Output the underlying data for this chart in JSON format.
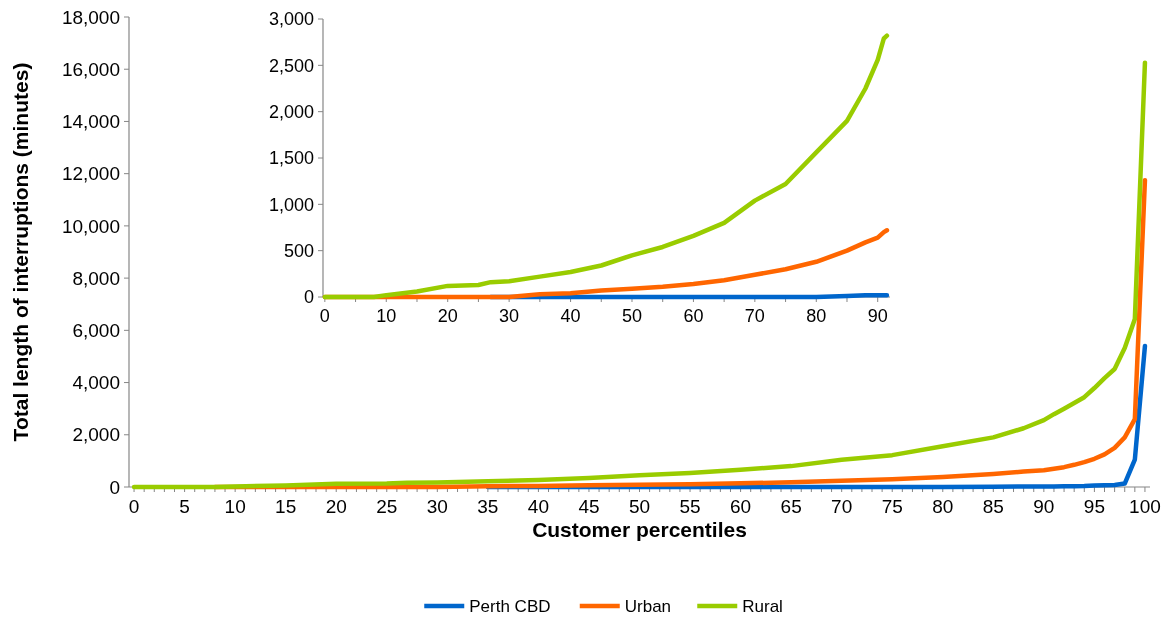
{
  "chart_data": [
    {
      "type": "line",
      "xlabel": "Customer percentiles",
      "ylabel": "Total length of interruptions (minutes)",
      "legend": "bottom",
      "line_style": "solid",
      "xlim": [
        -0.5,
        100.5
      ],
      "xticks": [
        {
          "value": 0,
          "label": "0"
        },
        {
          "value": 1,
          "label": null
        },
        {
          "value": 2,
          "label": null
        },
        {
          "value": 3,
          "label": null
        },
        {
          "value": 4,
          "label": null
        },
        5,
        {
          "value": 6,
          "label": null
        },
        {
          "value": 7,
          "label": null
        },
        {
          "value": 8,
          "label": null
        },
        {
          "value": 9,
          "label": null
        },
        10,
        {
          "value": 11,
          "label": null
        },
        {
          "value": 12,
          "label": null
        },
        {
          "value": 13,
          "label": null
        },
        {
          "value": 14,
          "label": null
        },
        15,
        {
          "value": 16,
          "label": null
        },
        {
          "value": 17,
          "label": null
        },
        {
          "value": 18,
          "label": null
        },
        {
          "value": 19,
          "label": null
        },
        20,
        {
          "value": 21,
          "label": null
        },
        {
          "value": 22,
          "label": null
        },
        {
          "value": 23,
          "label": null
        },
        {
          "value": 24,
          "label": null
        },
        25,
        {
          "value": 26,
          "label": null
        },
        {
          "value": 27,
          "label": null
        },
        {
          "value": 28,
          "label": null
        },
        {
          "value": 29,
          "label": null
        },
        30,
        {
          "value": 31,
          "label": null
        },
        {
          "value": 32,
          "label": null
        },
        {
          "value": 33,
          "label": null
        },
        {
          "value": 34,
          "label": null
        },
        35,
        {
          "value": 36,
          "label": null
        },
        {
          "value": 37,
          "label": null
        },
        {
          "value": 38,
          "label": null
        },
        {
          "value": 39,
          "label": null
        },
        40,
        {
          "value": 41,
          "label": null
        },
        {
          "value": 42,
          "label": null
        },
        {
          "value": 43,
          "label": null
        },
        {
          "value": 44,
          "label": null
        },
        45,
        {
          "value": 46,
          "label": null
        },
        {
          "value": 47,
          "label": null
        },
        {
          "value": 48,
          "label": null
        },
        {
          "value": 49,
          "label": null
        },
        50,
        {
          "value": 51,
          "label": null
        },
        {
          "value": 52,
          "label": null
        },
        {
          "value": 53,
          "label": null
        },
        {
          "value": 54,
          "label": null
        },
        55,
        {
          "value": 56,
          "label": null
        },
        {
          "value": 57,
          "label": null
        },
        {
          "value": 58,
          "label": null
        },
        {
          "value": 59,
          "label": null
        },
        60,
        {
          "value": 61,
          "label": null
        },
        {
          "value": 62,
          "label": null
        },
        {
          "value": 63,
          "label": null
        },
        {
          "value": 64,
          "label": null
        },
        65,
        {
          "value": 66,
          "label": null
        },
        {
          "value": 67,
          "label": null
        },
        {
          "value": 68,
          "label": null
        },
        {
          "value": 69,
          "label": null
        },
        70,
        {
          "value": 71,
          "label": null
        },
        {
          "value": 72,
          "label": null
        },
        {
          "value": 73,
          "label": null
        },
        {
          "value": 74,
          "label": null
        },
        75,
        {
          "value": 76,
          "label": null
        },
        {
          "value": 77,
          "label": null
        },
        {
          "value": 78,
          "label": null
        },
        {
          "value": 79,
          "label": null
        },
        80,
        {
          "value": 81,
          "label": null
        },
        {
          "value": 82,
          "label": null
        },
        {
          "value": 83,
          "label": null
        },
        {
          "value": 84,
          "label": null
        },
        85,
        {
          "value": 86,
          "label": null
        },
        {
          "value": 87,
          "label": null
        },
        {
          "value": 88,
          "label": null
        },
        {
          "value": 89,
          "label": null
        },
        90,
        {
          "value": 91,
          "label": null
        },
        {
          "value": 92,
          "label": null
        },
        {
          "value": 93,
          "label": null
        },
        {
          "value": 94,
          "label": null
        },
        95,
        {
          "value": 96,
          "label": null
        },
        {
          "value": 97,
          "label": null
        },
        {
          "value": 98,
          "label": null
        },
        {
          "value": 99,
          "label": null
        },
        100
      ],
      "ylim": [
        0,
        18000
      ],
      "yticks": [
        {
          "value": 0,
          "label": "0"
        },
        {
          "value": 2000,
          "label": "2,000"
        },
        {
          "value": 4000,
          "label": "4,000"
        },
        {
          "value": 6000,
          "label": "6,000"
        },
        {
          "value": 8000,
          "label": "8,000"
        },
        {
          "value": 10000,
          "label": "10,000"
        },
        {
          "value": 12000,
          "label": "12,000"
        },
        {
          "value": 14000,
          "label": "14,000"
        },
        {
          "value": 16000,
          "label": "16,000"
        },
        {
          "value": 18000,
          "label": "18,000"
        }
      ],
      "x": [
        0,
        5,
        8,
        10,
        15,
        20,
        25,
        27,
        30,
        35,
        40,
        45,
        50,
        55,
        60,
        65,
        70,
        75,
        80,
        85,
        88,
        90,
        91,
        92,
        93,
        94,
        95,
        96,
        97,
        98,
        99,
        100
      ],
      "series": [
        {
          "name": "Perth CBD",
          "color": "#0066cc",
          "values": [
            null,
            null,
            null,
            null,
            null,
            null,
            null,
            null,
            null,
            0,
            0,
            0,
            0,
            0,
            0,
            0,
            0,
            0,
            0,
            10,
            20,
            20,
            20,
            30,
            30,
            40,
            60,
            70,
            80,
            130,
            1050,
            5400
          ]
        },
        {
          "name": "Urban",
          "color": "#ff6600",
          "values": [
            null,
            null,
            0,
            0,
            0,
            0,
            0,
            0,
            0,
            30,
            40,
            70,
            90,
            110,
            140,
            180,
            240,
            300,
            380,
            500,
            590,
            640,
            700,
            760,
            850,
            950,
            1080,
            1250,
            1500,
            1900,
            2600,
            11750
          ]
        },
        {
          "name": "Rural",
          "color": "#99cc00",
          "values": [
            0,
            0,
            0,
            20,
            60,
            120,
            130,
            160,
            170,
            220,
            270,
            340,
            450,
            540,
            660,
            800,
            1040,
            1220,
            1560,
            1900,
            2250,
            2560,
            2790,
            3000,
            3220,
            3440,
            3790,
            4170,
            4520,
            5320,
            6430,
            16250
          ]
        }
      ]
    },
    {
      "type": "line",
      "line_style": "solid",
      "xlim": [
        -0.3,
        92
      ],
      "xticks": [
        {
          "value": 0,
          "label": "0"
        },
        {
          "value": 5,
          "label": null
        },
        10,
        {
          "value": 15,
          "label": null
        },
        20,
        {
          "value": 25,
          "label": null
        },
        30,
        {
          "value": 35,
          "label": null
        },
        40,
        {
          "value": 45,
          "label": null
        },
        50,
        {
          "value": 55,
          "label": null
        },
        60,
        {
          "value": 65,
          "label": null
        },
        70,
        {
          "value": 75,
          "label": null
        },
        80,
        {
          "value": 85,
          "label": null
        },
        90
      ],
      "ylim": [
        0,
        3000
      ],
      "yticks": [
        {
          "value": 0,
          "label": "0"
        },
        500,
        {
          "value": 1000,
          "label": "1,000"
        },
        {
          "value": 1500,
          "label": "1,500"
        },
        {
          "value": 2000,
          "label": "2,000"
        },
        {
          "value": 2500,
          "label": "2,500"
        },
        {
          "value": 3000,
          "label": "3,000"
        }
      ],
      "x": [
        0,
        5,
        8,
        10,
        15,
        20,
        25,
        27,
        30,
        35,
        40,
        45,
        50,
        55,
        60,
        65,
        70,
        75,
        80,
        85,
        88,
        90,
        91,
        91.5
      ],
      "series": [
        {
          "color": "#0066cc",
          "values": [
            null,
            null,
            null,
            null,
            null,
            null,
            null,
            0,
            0,
            0,
            0,
            0,
            0,
            0,
            0,
            0,
            0,
            0,
            0,
            10,
            20,
            20,
            20,
            20
          ]
        },
        {
          "color": "#ff6600",
          "values": [
            0,
            0,
            0,
            0,
            0,
            0,
            0,
            0,
            0,
            30,
            40,
            70,
            90,
            110,
            140,
            180,
            240,
            300,
            380,
            500,
            590,
            640,
            700,
            720
          ]
        },
        {
          "color": "#99cc00",
          "values": [
            0,
            0,
            0,
            20,
            60,
            120,
            130,
            160,
            170,
            220,
            270,
            340,
            450,
            540,
            660,
            800,
            1040,
            1220,
            1560,
            1900,
            2250,
            2560,
            2790,
            2820
          ]
        }
      ]
    }
  ]
}
